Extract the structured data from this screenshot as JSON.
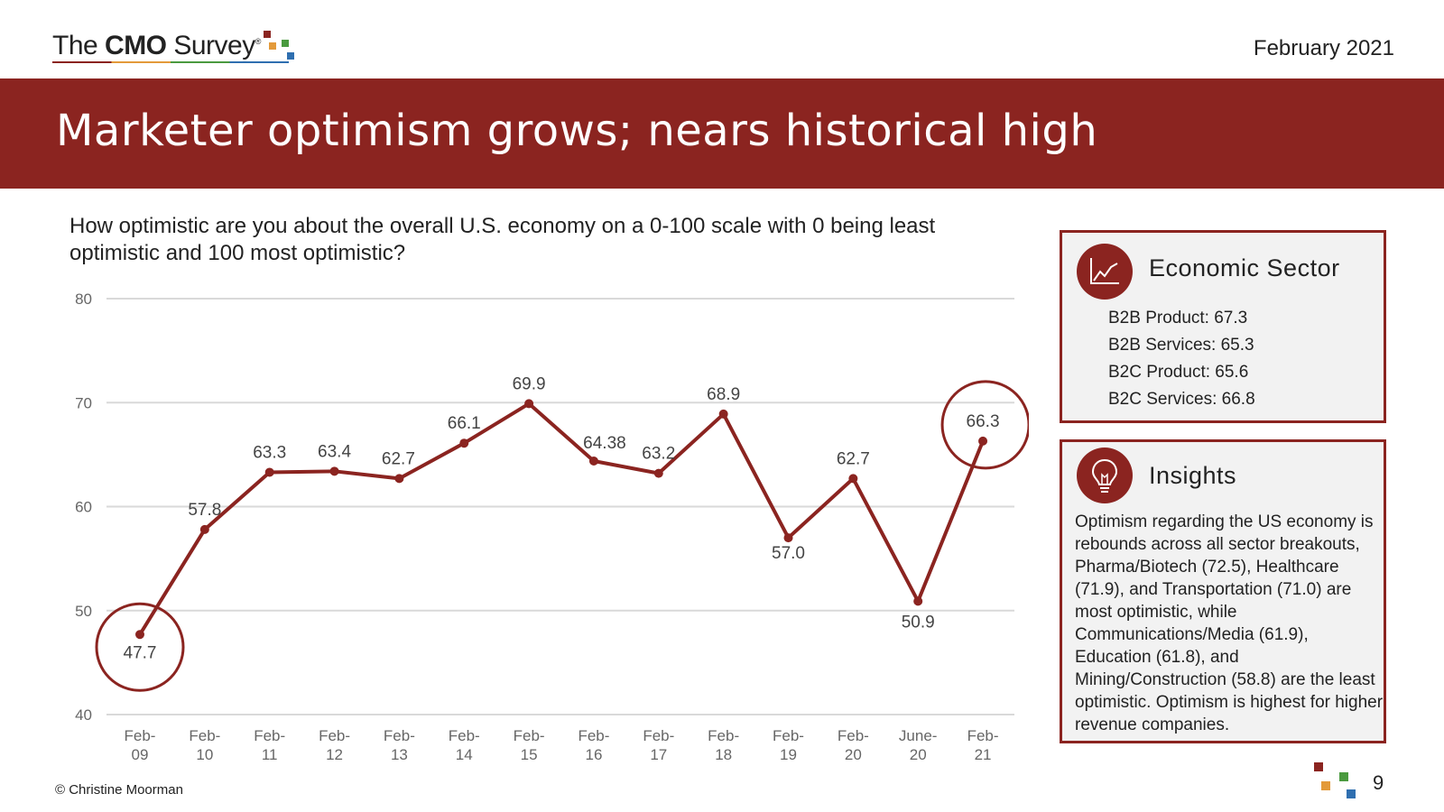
{
  "header": {
    "logo": {
      "prefix": "The ",
      "bold": "CMO",
      "suffix": " Survey",
      "reg": "®"
    },
    "date": "February 2021"
  },
  "banner": {
    "title": "Marketer optimism grows; nears historical high"
  },
  "question": "How optimistic are you about the overall U.S. economy on a 0-100 scale with 0 being least optimistic and 100 most optimistic?",
  "chart_data": {
    "type": "line",
    "x": [
      "Feb-09",
      "Feb-10",
      "Feb-11",
      "Feb-12",
      "Feb-13",
      "Feb-14",
      "Feb-15",
      "Feb-16",
      "Feb-17",
      "Feb-18",
      "Feb-19",
      "Feb-20",
      "June-20",
      "Feb-21"
    ],
    "x_tick_lines": [
      [
        "Feb-",
        "09"
      ],
      [
        "Feb-",
        "10"
      ],
      [
        "Feb-",
        "11"
      ],
      [
        "Feb-",
        "12"
      ],
      [
        "Feb-",
        "13"
      ],
      [
        "Feb-",
        "14"
      ],
      [
        "Feb-",
        "15"
      ],
      [
        "Feb-",
        "16"
      ],
      [
        "Feb-",
        "17"
      ],
      [
        "Feb-",
        "18"
      ],
      [
        "Feb-",
        "19"
      ],
      [
        "Feb-",
        "20"
      ],
      [
        "June-",
        "20"
      ],
      [
        "Feb-",
        "21"
      ]
    ],
    "values": [
      47.7,
      57.8,
      63.3,
      63.4,
      62.7,
      66.1,
      69.9,
      64.38,
      63.2,
      68.9,
      57.0,
      62.7,
      50.9,
      66.3
    ],
    "value_labels": [
      "47.7",
      "57.8",
      "63.3",
      "63.4",
      "62.7",
      "66.1",
      "69.9",
      "64.38",
      "63.2",
      "68.9",
      "57.0",
      "62.7",
      "50.9",
      "66.3"
    ],
    "ylim": [
      40,
      80
    ],
    "y_ticks": [
      40,
      50,
      60,
      70,
      80
    ],
    "grid": true,
    "highlighted_points": [
      "Feb-09",
      "Feb-21"
    ],
    "line_color": "#8b2420",
    "grid_color": "#d9d9d9"
  },
  "economic_sector": {
    "title": "Economic Sector",
    "icon": "line-chart-icon",
    "items": [
      "B2B Product: 67.3",
      "B2B Services: 65.3",
      "B2C Product: 65.6",
      "B2C Services: 66.8"
    ]
  },
  "insights": {
    "title": "Insights",
    "icon": "lightbulb-icon",
    "text": "Optimism regarding the US economy is rebounds across all sector breakouts, Pharma/Biotech (72.5), Healthcare (71.9), and Transportation (71.0) are most optimistic, while Communications/Media (61.9), Education (61.8), and Mining/Construction (58.8) are the least optimistic. Optimism is highest for higher revenue companies."
  },
  "footer": {
    "copyright": "© Christine Moorman",
    "page": "9"
  },
  "colors": {
    "brand_red": "#8b2420",
    "orange": "#e39a3a",
    "green": "#4a9a3f",
    "blue": "#2f6fb0"
  }
}
